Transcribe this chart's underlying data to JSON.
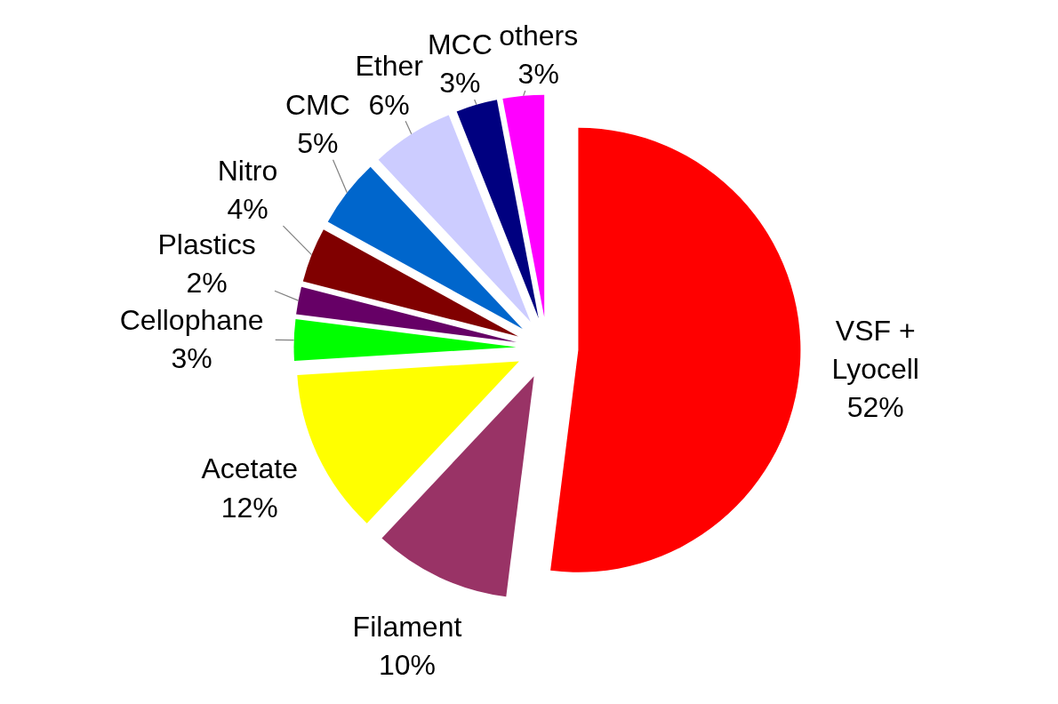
{
  "chart_data": {
    "type": "pie",
    "categories": [
      "VSF + Lyocell",
      "Filament",
      "Acetate",
      "Cellophane",
      "Plastics",
      "Nitro",
      "CMC",
      "Ether",
      "MCC",
      "others"
    ],
    "values": [
      52,
      10,
      12,
      3,
      2,
      4,
      5,
      6,
      3,
      3
    ],
    "colors": [
      "#ff0000",
      "#993366",
      "#ffff00",
      "#00ff00",
      "#660066",
      "#800000",
      "#0066cc",
      "#ccccff",
      "#000080",
      "#ff00ff"
    ],
    "value_labels": [
      "52%",
      "10%",
      "12%",
      "3%",
      "2%",
      "4%",
      "5%",
      "6%",
      "3%",
      "3%"
    ]
  }
}
